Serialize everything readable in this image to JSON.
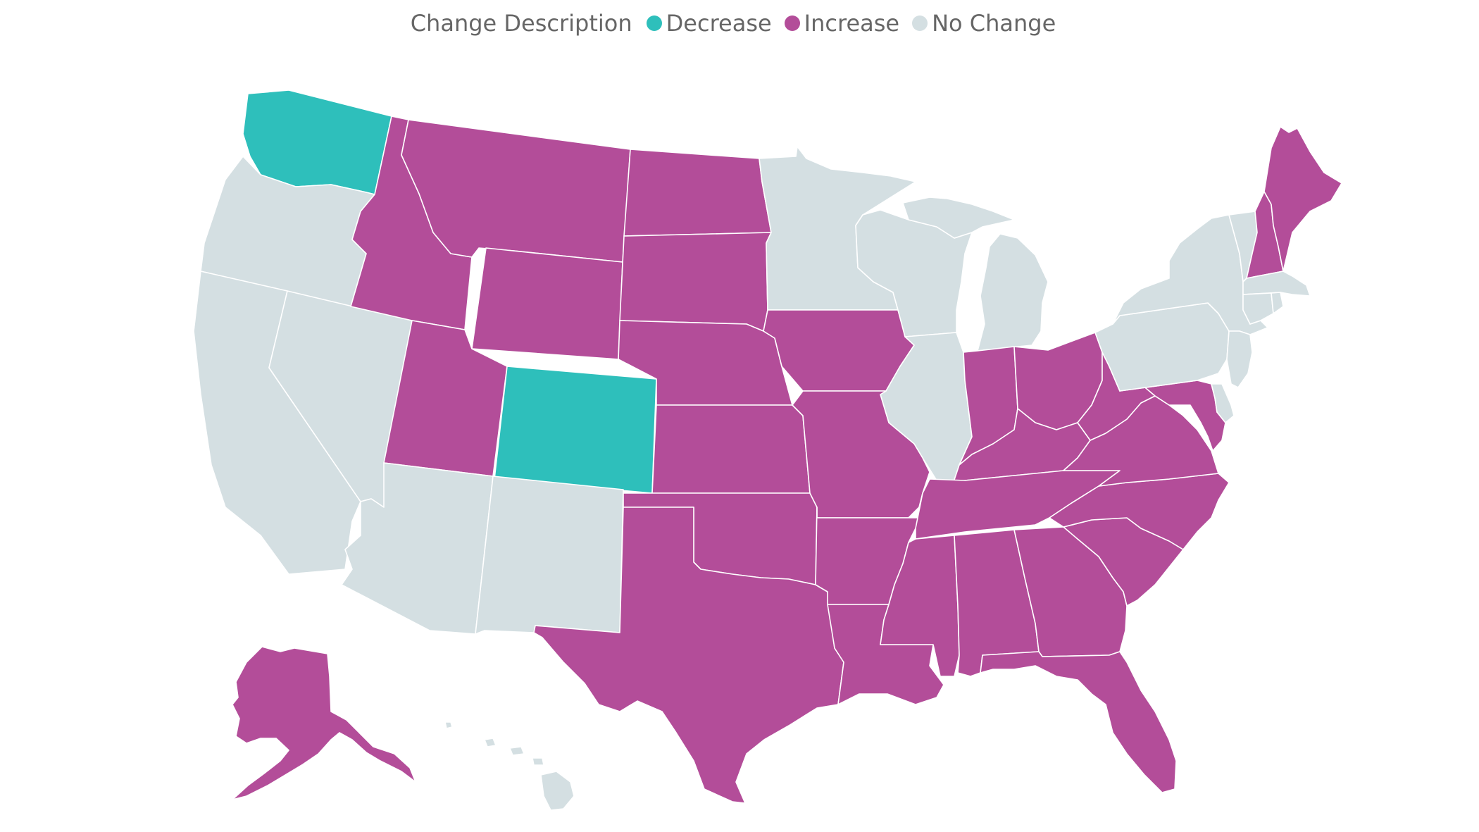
{
  "legend": {
    "title": "Change Description",
    "items": [
      {
        "key": "decrease",
        "label": "Decrease",
        "color": "#2ebfbb"
      },
      {
        "key": "increase",
        "label": "Increase",
        "color": "#b34d99"
      },
      {
        "key": "no_change",
        "label": "No Change",
        "color": "#d4dfe2"
      }
    ]
  },
  "states": {
    "WA": "decrease",
    "CO": "decrease",
    "OR": "no_change",
    "CA": "no_change",
    "NV": "no_change",
    "AZ": "no_change",
    "NM": "no_change",
    "MN": "no_change",
    "WI": "no_change",
    "MI": "no_change",
    "IL": "no_change",
    "NY": "no_change",
    "PA": "no_change",
    "NJ": "no_change",
    "VT": "no_change",
    "MA": "no_change",
    "CT": "no_change",
    "RI": "no_change",
    "DE": "no_change",
    "HI": "no_change",
    "ID": "increase",
    "MT": "increase",
    "WY": "increase",
    "UT": "increase",
    "ND": "increase",
    "SD": "increase",
    "NE": "increase",
    "KS": "increase",
    "OK": "increase",
    "TX": "increase",
    "IA": "increase",
    "MO": "increase",
    "AR": "increase",
    "LA": "increase",
    "MS": "increase",
    "AL": "increase",
    "TN": "increase",
    "KY": "increase",
    "IN": "increase",
    "OH": "increase",
    "WV": "increase",
    "VA": "increase",
    "MD": "increase",
    "NC": "increase",
    "SC": "increase",
    "GA": "increase",
    "FL": "increase",
    "NH": "increase",
    "ME": "increase",
    "AK": "increase"
  }
}
